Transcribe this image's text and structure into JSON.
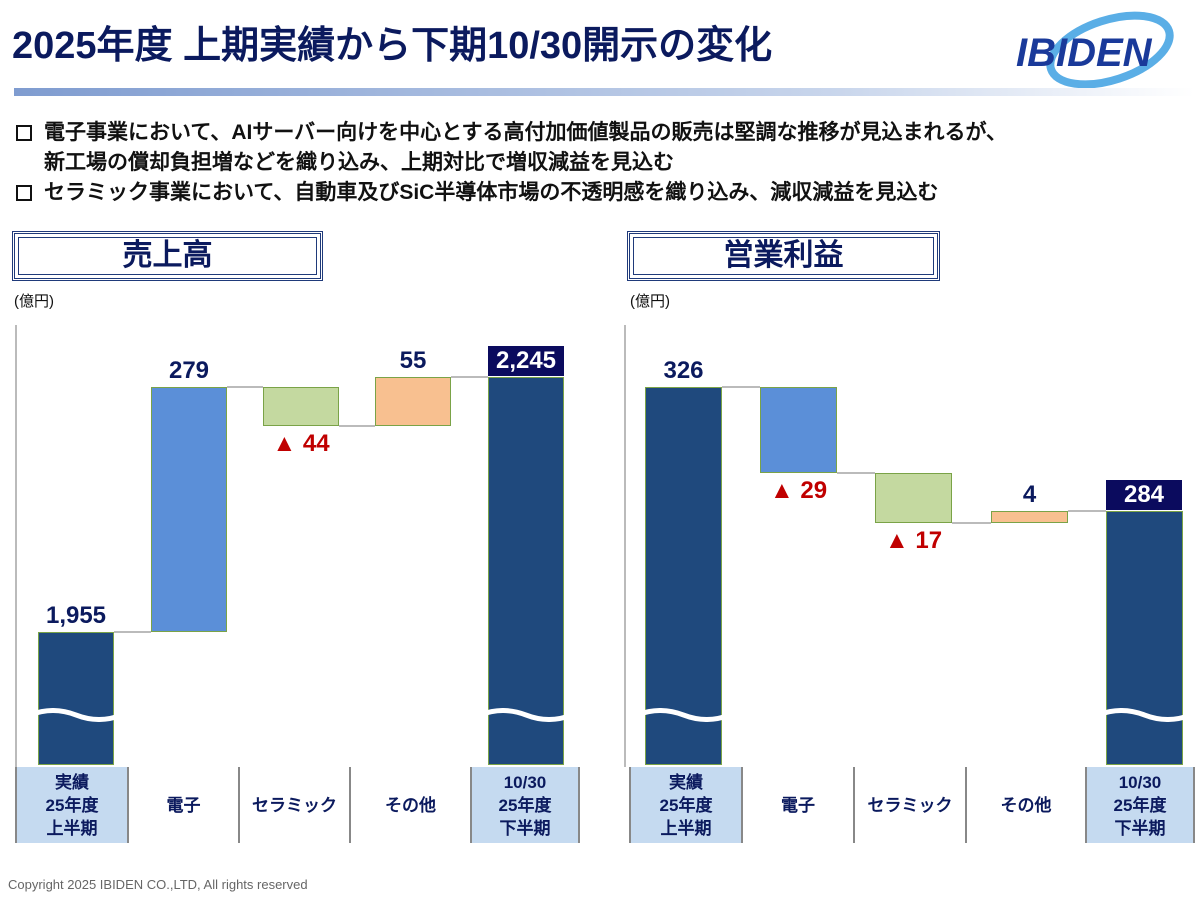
{
  "title": "2025年度 上期実績から下期10/30開示の変化",
  "logo": "IBIDEN",
  "bullets": [
    [
      "電子事業において、AIサーバー向けを中心とする高付加価値製品の販売は堅調な推移が見込まれるが、",
      "新工場の償却負担増などを織り込み、上期対比で増収減益を見込む"
    ],
    [
      "セラミック事業において、自動車及びSiC半導体市場の不透明感を織り込み、減収減益を見込む"
    ]
  ],
  "colors": {
    "total": "#1f497d",
    "electronics": "#5b8fd8",
    "ceramics": "#c4d9a0",
    "other": "#f8c090",
    "negative": "#c00000"
  },
  "chart_data": [
    {
      "type": "waterfall",
      "title": "売上高",
      "unit": "(億円)",
      "categories": [
        "実績\n25年度\n上半期",
        "電子",
        "セラミック",
        "その他",
        "10/30\n25年度\n下半期"
      ],
      "values": [
        1955,
        279,
        -44,
        55,
        2245
      ],
      "labels": [
        "1,955",
        "279",
        "▲ 44",
        "55",
        "2,245"
      ],
      "kinds": [
        "total",
        "electronics",
        "ceramics",
        "other",
        "total"
      ]
    },
    {
      "type": "waterfall",
      "title": "営業利益",
      "unit": "(億円)",
      "categories": [
        "実績\n25年度\n上半期",
        "電子",
        "セラミック",
        "その他",
        "10/30\n25年度\n下半期"
      ],
      "values": [
        326,
        -29,
        -17,
        4,
        284
      ],
      "labels": [
        "326",
        "▲ 29",
        "▲ 17",
        "4",
        "284"
      ],
      "kinds": [
        "total",
        "electronics",
        "ceramics",
        "other",
        "total"
      ]
    }
  ],
  "copyright": "Copyright 2025 IBIDEN CO.,LTD, All rights reserved"
}
